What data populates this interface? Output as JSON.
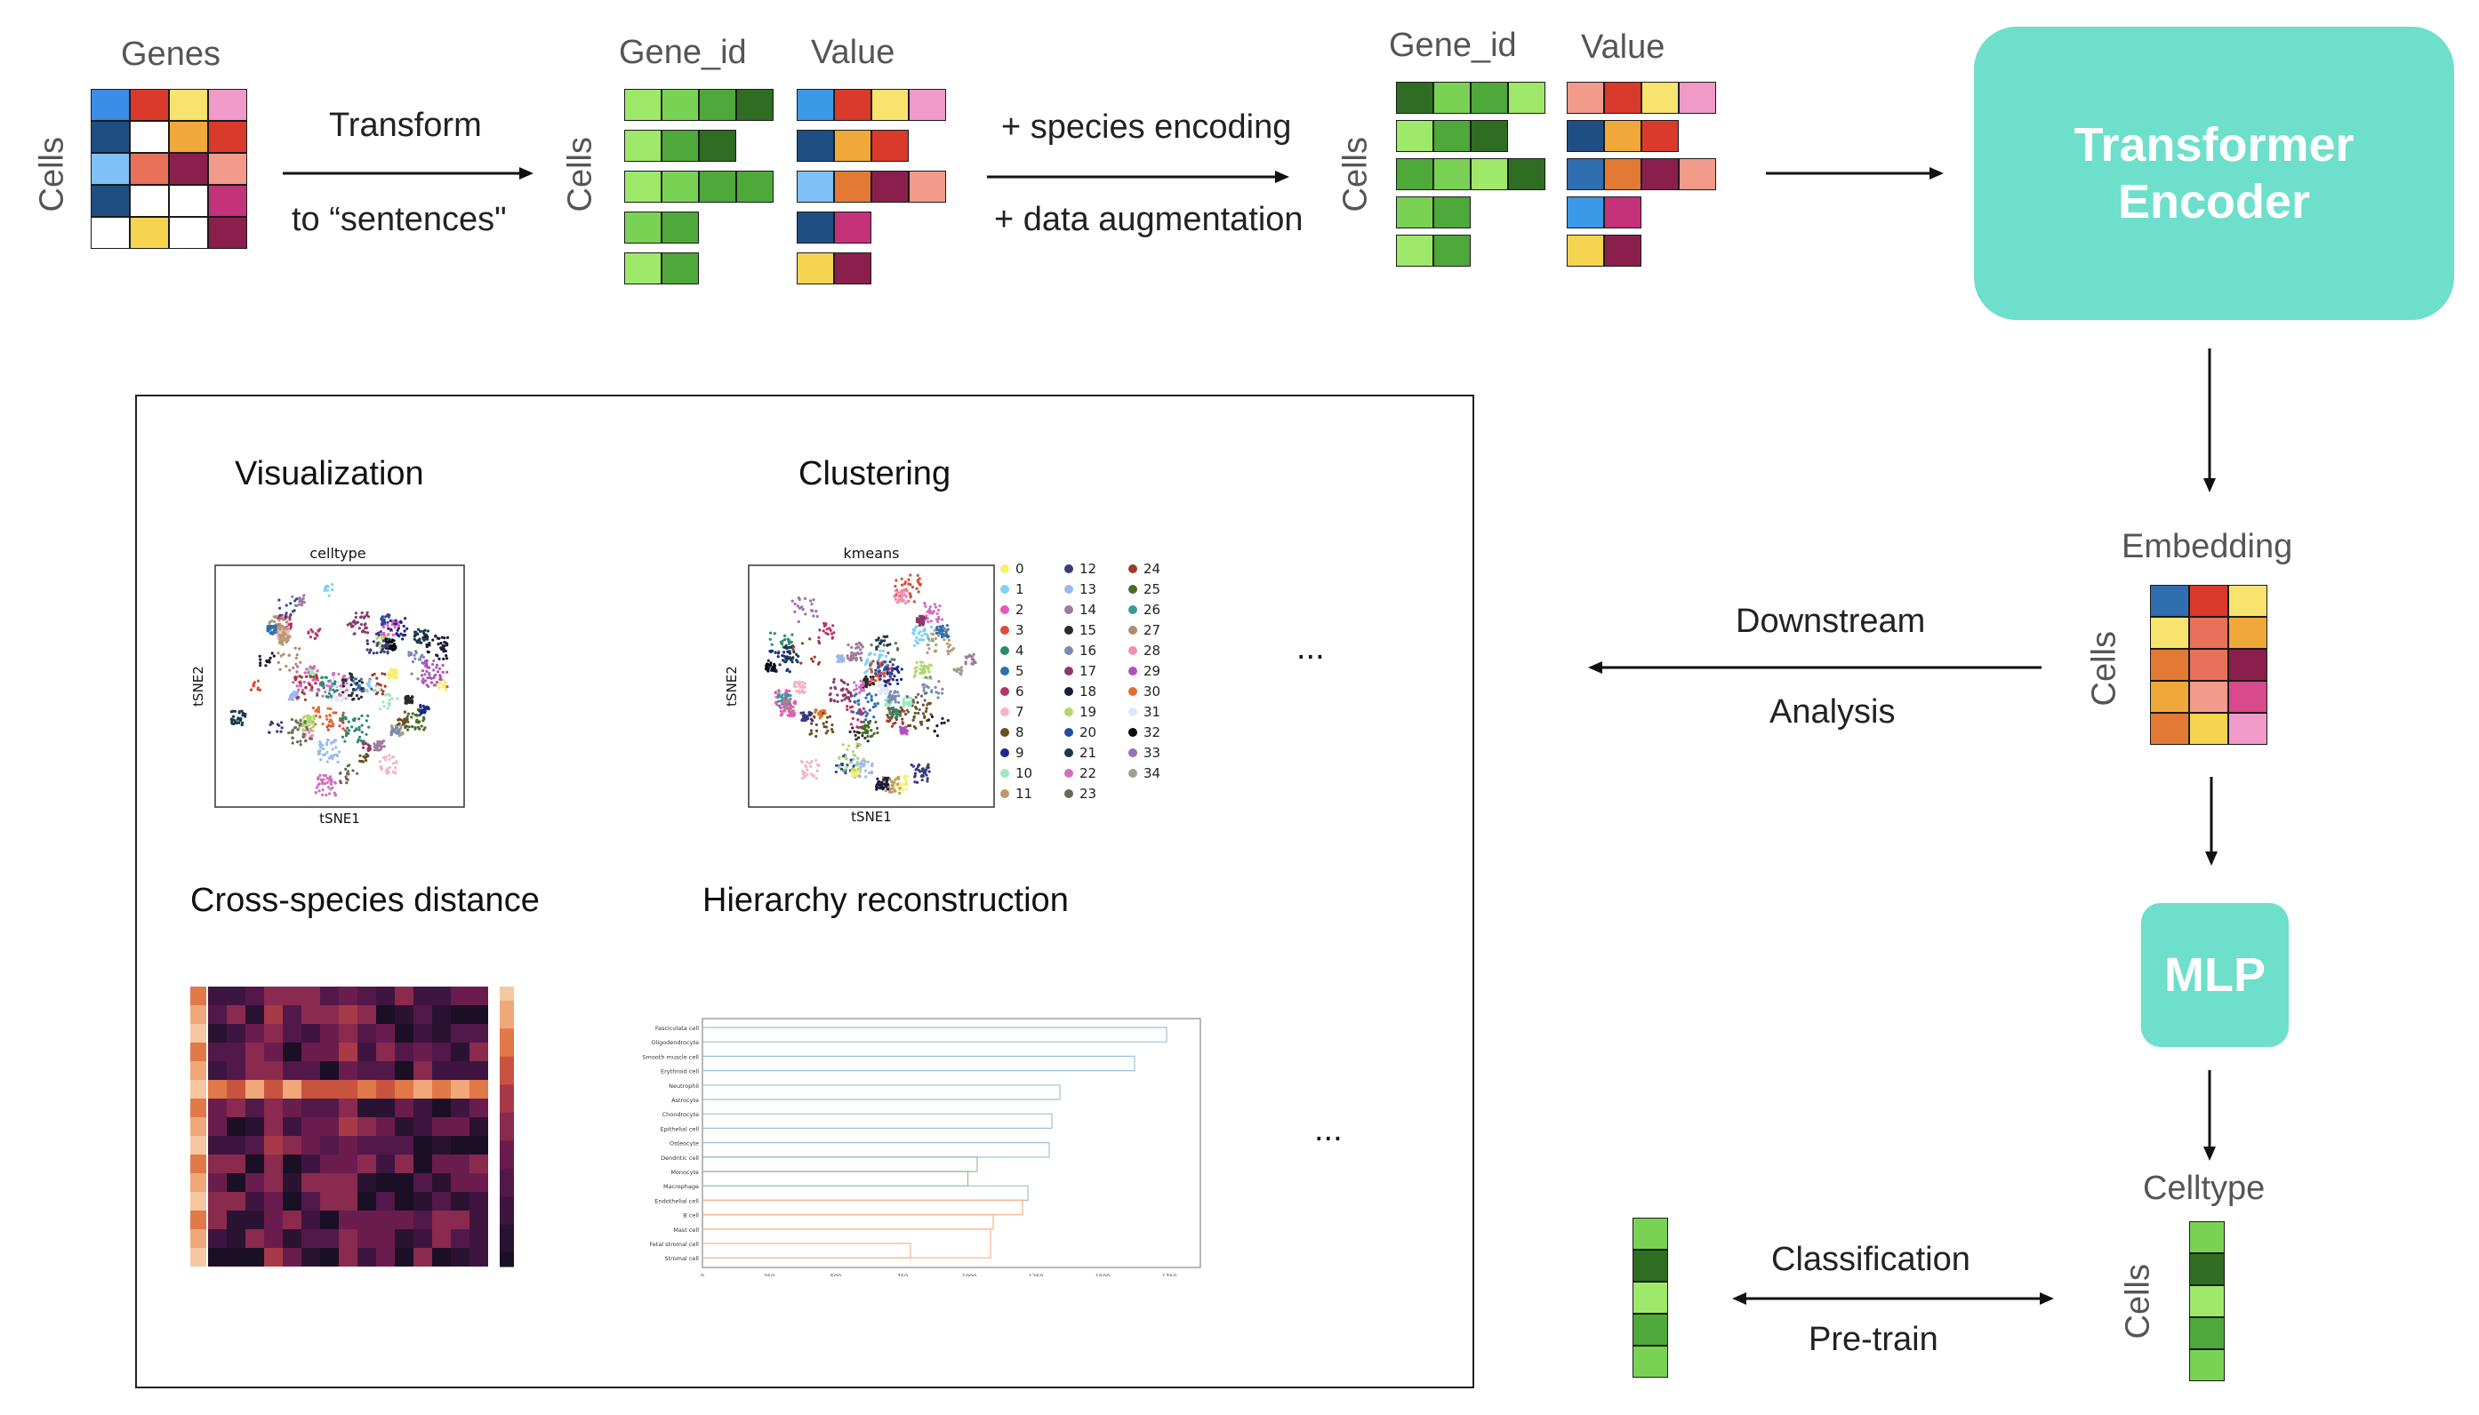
{
  "pipeline": {
    "matrix1": {
      "title": "Genes",
      "row_label": "Cells",
      "colors": [
        [
          "#3a8ee6",
          "#d93a2b",
          "#f7e36d",
          "#ef9ac8"
        ],
        [
          "#1f4e83",
          "#ffffff",
          "#f0a83a",
          "#d93a2b"
        ],
        [
          "#7fc0f7",
          "#e9715a",
          "#8a1f4c",
          "#f29b8a"
        ],
        [
          "#1f4e83",
          "#ffffff",
          "#ffffff",
          "#c4327a"
        ],
        [
          "#ffffff",
          "#f6d44f",
          "#ffffff",
          "#8a1f4c"
        ]
      ]
    },
    "transform_label_1": "Transform",
    "transform_label_2": "to “sentences\"",
    "sentences": {
      "gene_title": "Gene_id",
      "value_title": "Value",
      "row_label": "Cells",
      "gene_rows": [
        [
          "#9ee86a",
          "#7ad255",
          "#4ea83a",
          "#2f6d23"
        ],
        [
          "#9ee86a",
          "#4ea83a",
          "#2f6d23"
        ],
        [
          "#9ee86a",
          "#7ad255",
          "#4ea83a",
          "#4ea83a"
        ],
        [
          "#7ad255",
          "#4ea83a"
        ],
        [
          "#9ee86a",
          "#4ea83a"
        ]
      ],
      "value_rows": [
        [
          "#3a9ae8",
          "#d93a2b",
          "#f7e36d",
          "#ef9ac8"
        ],
        [
          "#1f4e83",
          "#f0a83a",
          "#d93a2b"
        ],
        [
          "#7fc0f7",
          "#e27a35",
          "#8a1f4c",
          "#f29b8a"
        ],
        [
          "#1f4e83",
          "#c4327a"
        ],
        [
          "#f6d44f",
          "#8a1f4c"
        ]
      ]
    },
    "encoding_label_1": "+ species encoding",
    "encoding_label_2": "+ data augmentation",
    "encoded": {
      "gene_title": "Gene_id",
      "value_title": "Value",
      "row_label": "Cells",
      "gene_rows": [
        [
          "#2f6d23",
          "#7ad255",
          "#4ea83a",
          "#9ee86a"
        ],
        [
          "#9ee86a",
          "#4ea83a",
          "#2f6d23"
        ],
        [
          "#4ea83a",
          "#7ad255",
          "#9ee86a",
          "#2f6d23"
        ],
        [
          "#7ad255",
          "#4ea83a"
        ],
        [
          "#9ee86a",
          "#4ea83a"
        ]
      ],
      "value_rows": [
        [
          "#f29b8a",
          "#d93a2b",
          "#f7e36d",
          "#ef9ac8"
        ],
        [
          "#1f4e83",
          "#f0a83a",
          "#d93a2b"
        ],
        [
          "#2f6fb0",
          "#e27a35",
          "#8a1f4c",
          "#f29b8a"
        ],
        [
          "#3a9ae8",
          "#c4327a"
        ],
        [
          "#f6d44f",
          "#8a1f4c"
        ]
      ]
    },
    "encoder_label_1": "Transformer",
    "encoder_label_2": "Encoder",
    "embedding": {
      "title": "Embedding",
      "row_label": "Cells",
      "colors": [
        [
          "#2f6fb0",
          "#d93a2b",
          "#f7e36d"
        ],
        [
          "#f7e36d",
          "#e9715a",
          "#f0a83a"
        ],
        [
          "#e27a35",
          "#e9715a",
          "#8a1f4c"
        ],
        [
          "#f0a83a",
          "#f29b8a",
          "#d94a8c"
        ],
        [
          "#e27a35",
          "#f6d44f",
          "#ef9ac8"
        ]
      ]
    },
    "downstream_label_1": "Downstream",
    "downstream_label_2": "Analysis",
    "mlp_label": "MLP",
    "celltype": {
      "title": "Celltype",
      "row_label": "Cells",
      "colors": [
        "#7ad255",
        "#2f6d23",
        "#9ee86a",
        "#4ea83a",
        "#7ad255"
      ]
    },
    "classification_label": "Classification",
    "pretrain_label": "Pre-train",
    "left_vector_colors": [
      "#7ad255",
      "#2f6d23",
      "#9ee86a",
      "#4ea83a",
      "#7ad255"
    ]
  },
  "panel": {
    "visualization": {
      "title": "Visualization",
      "plot_title": "celltype",
      "xlabel": "tSNE1",
      "ylabel": "tSNE2"
    },
    "clustering": {
      "title": "Clustering",
      "plot_title": "kmeans",
      "xlabel": "tSNE1",
      "ylabel": "tSNE2",
      "legend": [
        {
          "label": "0",
          "color": "#f7f06a"
        },
        {
          "label": "1",
          "color": "#7fd0f5"
        },
        {
          "label": "2",
          "color": "#e05ab8"
        },
        {
          "label": "3",
          "color": "#e04a3a"
        },
        {
          "label": "4",
          "color": "#2d8a6a"
        },
        {
          "label": "5",
          "color": "#2f6fb0"
        },
        {
          "label": "6",
          "color": "#b8326a"
        },
        {
          "label": "7",
          "color": "#f2b5c8"
        },
        {
          "label": "8",
          "color": "#6a5020"
        },
        {
          "label": "9",
          "color": "#1a2a8a"
        },
        {
          "label": "10",
          "color": "#9ee8c0"
        },
        {
          "label": "11",
          "color": "#b89a70"
        },
        {
          "label": "12",
          "color": "#3a3a7a"
        },
        {
          "label": "13",
          "color": "#9ab8f0"
        },
        {
          "label": "14",
          "color": "#a07a9a"
        },
        {
          "label": "15",
          "color": "#2a2a2a"
        },
        {
          "label": "16",
          "color": "#7a8ab0"
        },
        {
          "label": "17",
          "color": "#8a3a6a"
        },
        {
          "label": "18",
          "color": "#1a1a3a"
        },
        {
          "label": "19",
          "color": "#b0d870"
        },
        {
          "label": "20",
          "color": "#2a4aa0"
        },
        {
          "label": "21",
          "color": "#1a3a4a"
        },
        {
          "label": "22",
          "color": "#d070c0"
        },
        {
          "label": "23",
          "color": "#6a6a5a"
        },
        {
          "label": "24",
          "color": "#a03a2a"
        },
        {
          "label": "25",
          "color": "#4a6a2a"
        },
        {
          "label": "26",
          "color": "#3a9a9a"
        },
        {
          "label": "27",
          "color": "#b08a6a"
        },
        {
          "label": "28",
          "color": "#f090b0"
        },
        {
          "label": "29",
          "color": "#b050c0"
        },
        {
          "label": "30",
          "color": "#e07030"
        },
        {
          "label": "31",
          "color": "#e0e8f5"
        },
        {
          "label": "32",
          "color": "#0a0a0a"
        },
        {
          "label": "33",
          "color": "#9a70b0"
        },
        {
          "label": "34",
          "color": "#a0a090"
        }
      ]
    },
    "ellipsis_1": "...",
    "cross_species": {
      "title": "Cross-species distance"
    },
    "hierarchy": {
      "title": "Hierarchy reconstruction",
      "leaves": [
        "Fasciculata cell",
        "Oligodendrocyte",
        "Smooth muscle cell",
        "Erythroid cell",
        "Neutrophil",
        "Astrocyte",
        "Chondrocyte",
        "Epithelial cell",
        "Osteocyte",
        "Dendritic cell",
        "Monocyte",
        "Macrophage",
        "Endothelial cell",
        "B cell",
        "Mast cell",
        "Fetal stromal cell",
        "Stromal cell"
      ],
      "x_ticks": [
        "0",
        "250",
        "500",
        "750",
        "1000",
        "1250",
        "1500",
        "1750"
      ]
    },
    "ellipsis_2": "..."
  }
}
